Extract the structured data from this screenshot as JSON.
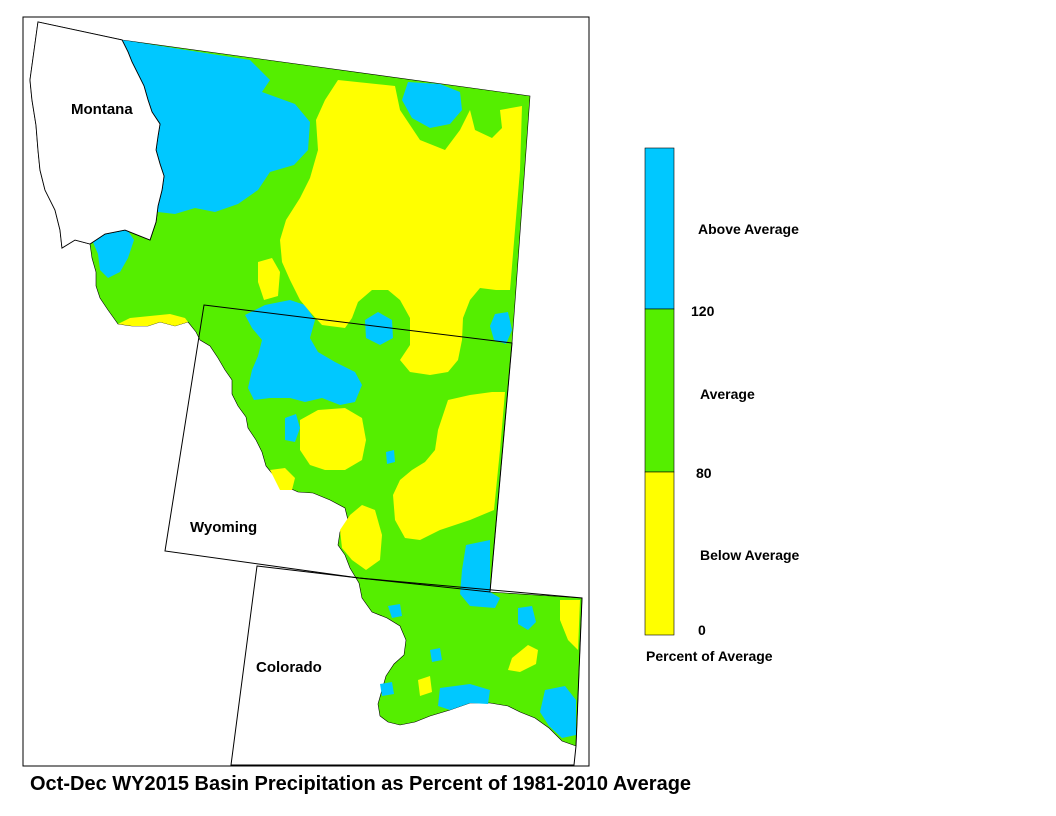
{
  "title": "Oct-Dec WY2015 Basin Precipitation as Percent of 1981-2010 Average",
  "states": {
    "montana": "Montana",
    "wyoming": "Wyoming",
    "colorado": "Colorado"
  },
  "legend": {
    "title": "Percent of Average",
    "categories": [
      {
        "label": "Above Average",
        "range": [
          120,
          null
        ],
        "color": "#00c8ff"
      },
      {
        "label": "Average",
        "range": [
          80,
          120
        ],
        "color": "#55ee00"
      },
      {
        "label": "Below Average",
        "range": [
          0,
          80
        ],
        "color": "#ffff00"
      }
    ],
    "ticks": [
      "120",
      "80",
      "0"
    ]
  },
  "colors": {
    "above": "#00c8ff",
    "average": "#55ee00",
    "below": "#ffff00",
    "border": "#000000"
  }
}
